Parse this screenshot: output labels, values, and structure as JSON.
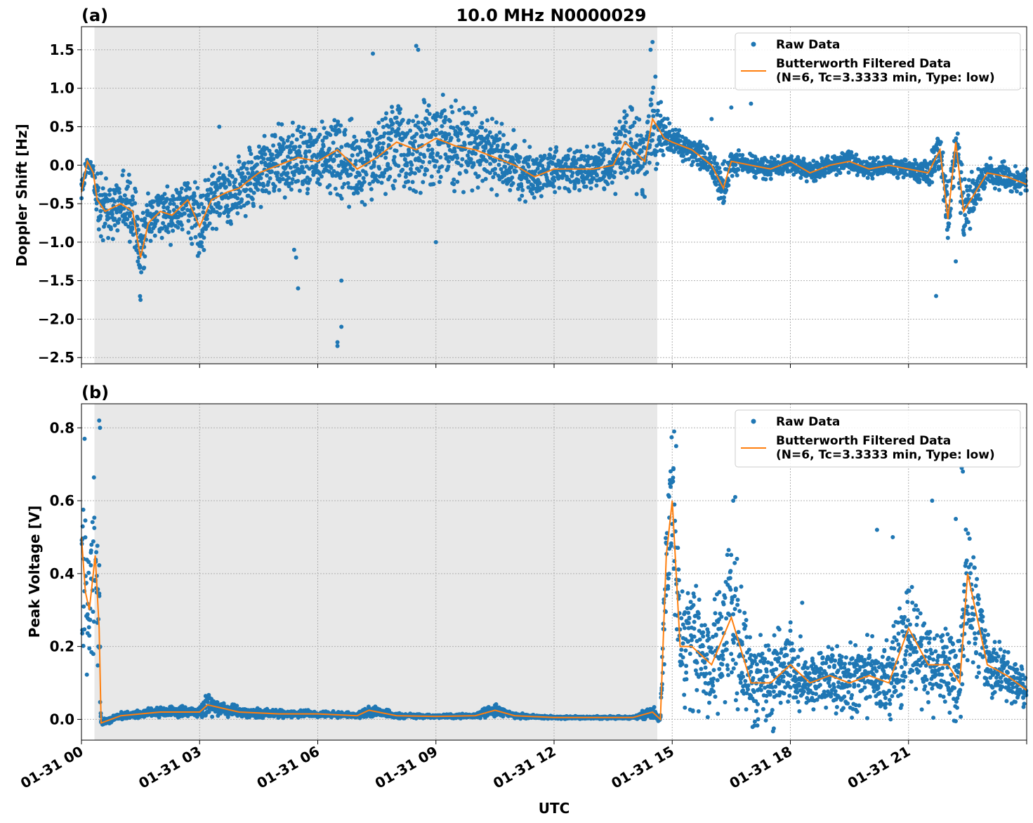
{
  "title": "10.0 MHz N0000029",
  "xlabel": "UTC",
  "x_tick_labels": [
    "01-31 00",
    "01-31 03",
    "01-31 06",
    "01-31 09",
    "01-31 12",
    "01-31 15",
    "01-31 18",
    "01-31 21"
  ],
  "colors": {
    "raw": "#1f77b4",
    "filtered": "#ff7f0e",
    "shade": "#e8e8e8",
    "grid": "#b0b0b0"
  },
  "legend": {
    "raw_label": "Raw Data",
    "filtered_label_line1": "Butterworth Filtered Data",
    "filtered_label_line2": "(N=6, Tc=3.3333 min, Type: low)",
    "placement": "top-right"
  },
  "chart_data": [
    {
      "type": "scatter",
      "panel_label": "(a)",
      "ylabel": "Doppler Shift [Hz]",
      "xlim_hours": [
        0,
        24
      ],
      "ylim": [
        -2.58,
        1.8
      ],
      "yticks": [
        1.5,
        1.0,
        0.5,
        0.0,
        -0.5,
        -1.0,
        -1.5,
        -2.0,
        -2.5
      ],
      "ytick_labels": [
        "1.5",
        "1.0",
        "0.5",
        "0.0",
        "−0.5",
        "−1.0",
        "−1.5",
        "−2.0",
        "−2.5"
      ],
      "grid": true,
      "shaded_interval_hours": [
        0.33,
        14.62
      ],
      "series": [
        {
          "name": "Butterworth Filtered Data",
          "x_hours": [
            0,
            0.15,
            0.3,
            0.4,
            0.6,
            1.0,
            1.3,
            1.5,
            1.7,
            2.0,
            2.3,
            2.7,
            3.0,
            3.3,
            3.7,
            4.0,
            4.5,
            5.0,
            5.5,
            6.0,
            6.5,
            7.0,
            7.5,
            8.0,
            8.5,
            9.0,
            9.5,
            10.0,
            10.5,
            11.0,
            11.5,
            12.0,
            12.5,
            13.0,
            13.5,
            13.8,
            14.0,
            14.3,
            14.5,
            14.8,
            15.0,
            15.5,
            16.0,
            16.3,
            16.5,
            17.0,
            17.5,
            18.0,
            18.5,
            19.0,
            19.5,
            20.0,
            20.5,
            21.0,
            21.5,
            21.8,
            22.0,
            22.2,
            22.4,
            22.7,
            23.0,
            23.5,
            24.0
          ],
          "y": [
            -0.35,
            0.05,
            -0.1,
            -0.45,
            -0.6,
            -0.5,
            -0.6,
            -1.2,
            -0.75,
            -0.6,
            -0.65,
            -0.45,
            -0.8,
            -0.45,
            -0.35,
            -0.3,
            -0.1,
            0.0,
            0.1,
            0.05,
            0.2,
            -0.05,
            0.1,
            0.3,
            0.2,
            0.35,
            0.25,
            0.2,
            0.1,
            0.0,
            -0.15,
            -0.05,
            -0.05,
            -0.05,
            0.0,
            0.3,
            0.2,
            0.05,
            0.6,
            0.35,
            0.3,
            0.2,
            0.0,
            -0.3,
            0.05,
            0.0,
            -0.05,
            0.05,
            -0.1,
            0.0,
            0.05,
            -0.05,
            0.0,
            -0.05,
            -0.1,
            0.2,
            -0.7,
            0.3,
            -0.6,
            -0.35,
            -0.1,
            -0.15,
            -0.25
          ]
        },
        {
          "name": "Raw Data",
          "x_hours": [
            0,
            0.15,
            0.3,
            0.4,
            0.6,
            1.0,
            1.3,
            1.5,
            1.7,
            2.0,
            2.3,
            2.7,
            3.0,
            3.3,
            3.7,
            4.0,
            4.5,
            5.0,
            5.5,
            6.0,
            6.5,
            7.0,
            7.5,
            8.0,
            8.5,
            9.0,
            9.5,
            10.0,
            10.5,
            11.0,
            11.5,
            12.0,
            12.5,
            13.0,
            13.5,
            13.8,
            14.0,
            14.3,
            14.5,
            14.8,
            15.0,
            15.5,
            16.0,
            16.3,
            16.5,
            17.0,
            17.5,
            18.0,
            18.5,
            19.0,
            19.5,
            20.0,
            20.5,
            21.0,
            21.5,
            21.8,
            22.0,
            22.2,
            22.4,
            22.7,
            23.0,
            23.5,
            24.0
          ],
          "spread": [
            0.15,
            0.1,
            0.15,
            0.4,
            0.45,
            0.45,
            0.5,
            0.55,
            0.45,
            0.4,
            0.4,
            0.45,
            0.45,
            0.45,
            0.45,
            0.45,
            0.5,
            0.55,
            0.55,
            0.55,
            0.6,
            0.6,
            0.55,
            0.6,
            0.6,
            0.65,
            0.6,
            0.55,
            0.5,
            0.45,
            0.35,
            0.3,
            0.3,
            0.3,
            0.4,
            0.6,
            0.55,
            0.5,
            0.7,
            0.35,
            0.2,
            0.2,
            0.2,
            0.35,
            0.2,
            0.15,
            0.15,
            0.15,
            0.15,
            0.15,
            0.15,
            0.15,
            0.15,
            0.15,
            0.2,
            0.3,
            0.5,
            0.3,
            0.5,
            0.3,
            0.2,
            0.2,
            0.2
          ],
          "outliers_x_hours": [
            6.5,
            6.5,
            6.6,
            6.6,
            5.5,
            5.4,
            5.45,
            3.5,
            7.4,
            8.5,
            8.55,
            9.0,
            14.5,
            14.45,
            16.0,
            16.5,
            17.0,
            21.7,
            22.2,
            1.5
          ],
          "outliers_y": [
            -2.35,
            -2.3,
            -2.1,
            -1.5,
            -1.6,
            -1.1,
            -1.2,
            0.5,
            1.45,
            1.55,
            1.5,
            -1.0,
            1.6,
            1.5,
            0.6,
            0.75,
            0.8,
            -1.7,
            -1.25,
            -1.75
          ]
        }
      ]
    },
    {
      "type": "scatter",
      "panel_label": "(b)",
      "ylabel": "Peak Voltage [V]",
      "xlim_hours": [
        0,
        24
      ],
      "ylim": [
        -0.057,
        0.866
      ],
      "yticks": [
        0.8,
        0.6,
        0.4,
        0.2,
        0.0
      ],
      "ytick_labels": [
        "0.8",
        "0.6",
        "0.4",
        "0.2",
        "0.0"
      ],
      "grid": true,
      "shaded_interval_hours": [
        0.33,
        14.62
      ],
      "series": [
        {
          "name": "Butterworth Filtered Data",
          "x_hours": [
            0,
            0.1,
            0.2,
            0.35,
            0.45,
            0.5,
            1.0,
            2.0,
            3.0,
            3.2,
            4.0,
            5.0,
            6.0,
            7.0,
            7.3,
            8.0,
            9.0,
            10.0,
            10.5,
            11.0,
            12.0,
            13.0,
            14.0,
            14.5,
            14.7,
            14.85,
            15.0,
            15.2,
            15.5,
            16.0,
            16.5,
            17.0,
            17.5,
            18.0,
            18.5,
            19.0,
            19.5,
            20.0,
            20.5,
            21.0,
            21.5,
            22.0,
            22.3,
            22.5,
            23.0,
            23.5,
            24.0
          ],
          "y": [
            0.5,
            0.35,
            0.3,
            0.45,
            0.25,
            -0.01,
            0.01,
            0.02,
            0.02,
            0.04,
            0.02,
            0.015,
            0.015,
            0.01,
            0.025,
            0.01,
            0.008,
            0.01,
            0.025,
            0.01,
            0.005,
            0.005,
            0.005,
            0.02,
            0.0,
            0.45,
            0.6,
            0.2,
            0.2,
            0.15,
            0.28,
            0.1,
            0.1,
            0.15,
            0.1,
            0.12,
            0.1,
            0.12,
            0.1,
            0.25,
            0.15,
            0.15,
            0.1,
            0.4,
            0.15,
            0.12,
            0.08
          ]
        },
        {
          "name": "Raw Data",
          "x_hours": [
            0,
            0.1,
            0.2,
            0.35,
            0.45,
            0.5,
            1.0,
            2.0,
            3.0,
            3.2,
            4.0,
            5.0,
            6.0,
            7.0,
            7.3,
            8.0,
            9.0,
            10.0,
            10.5,
            11.0,
            12.0,
            13.0,
            14.0,
            14.5,
            14.7,
            14.85,
            15.0,
            15.2,
            15.5,
            16.0,
            16.5,
            17.0,
            17.5,
            18.0,
            18.5,
            19.0,
            19.5,
            20.0,
            20.5,
            21.0,
            21.5,
            22.0,
            22.3,
            22.5,
            23.0,
            23.5,
            24.0
          ],
          "spread": [
            0.25,
            0.25,
            0.15,
            0.3,
            0.2,
            0.01,
            0.01,
            0.015,
            0.02,
            0.035,
            0.015,
            0.012,
            0.01,
            0.008,
            0.02,
            0.008,
            0.005,
            0.008,
            0.02,
            0.008,
            0.004,
            0.004,
            0.004,
            0.02,
            0.01,
            0.25,
            0.2,
            0.15,
            0.2,
            0.15,
            0.25,
            0.12,
            0.15,
            0.12,
            0.1,
            0.1,
            0.12,
            0.12,
            0.12,
            0.2,
            0.15,
            0.15,
            0.12,
            0.25,
            0.1,
            0.07,
            0.06
          ],
          "outliers_x_hours": [
            0.45,
            0.47,
            0.08,
            15.05,
            15.1,
            16.55,
            16.6,
            21.6,
            22.2,
            22.35,
            22.38,
            20.2,
            20.6,
            18.3
          ],
          "outliers_y": [
            0.82,
            0.8,
            0.77,
            0.79,
            0.75,
            0.6,
            0.61,
            0.6,
            0.55,
            0.69,
            0.68,
            0.52,
            0.5,
            0.32
          ]
        }
      ]
    }
  ]
}
